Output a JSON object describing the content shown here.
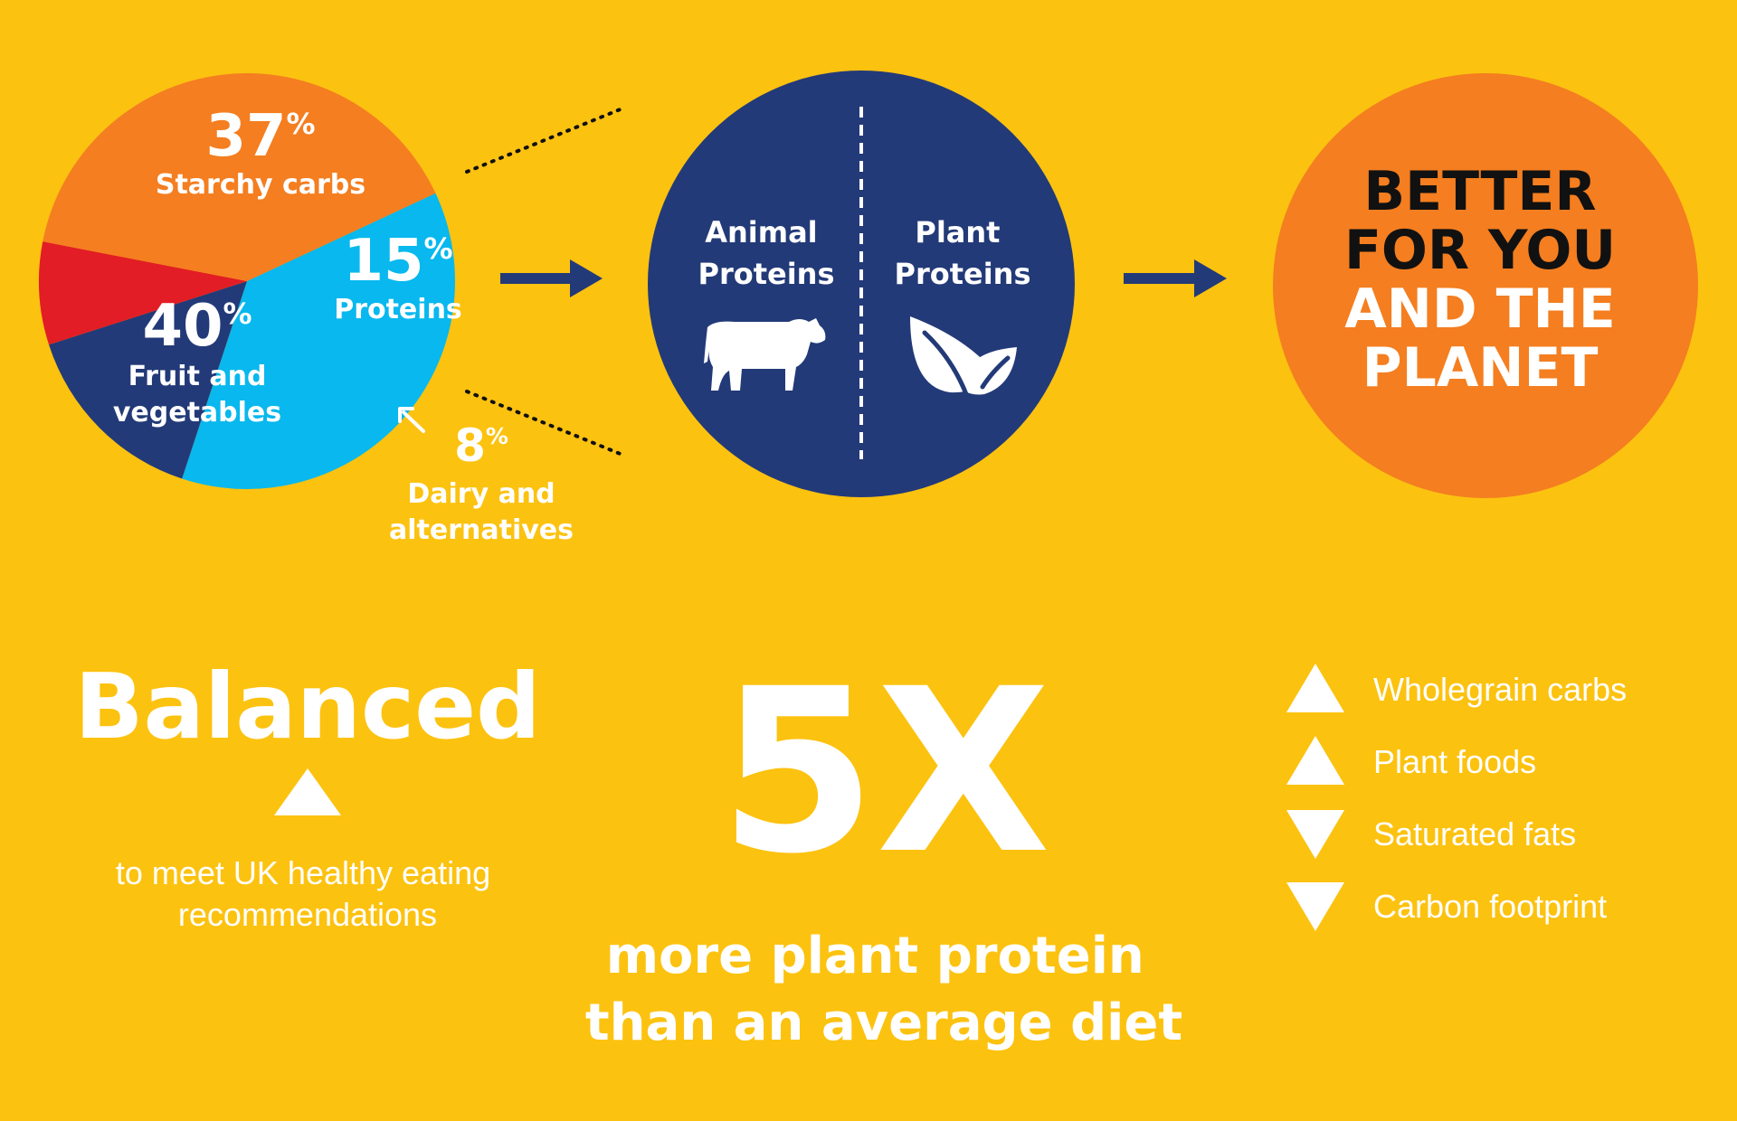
{
  "colors": {
    "background": "#FCC210",
    "navy": "#233A78",
    "orange": "#F47E20",
    "light_blue": "#08B8EE",
    "red": "#E21D25",
    "white": "#FFFFFF",
    "black": "#111111"
  },
  "chart_data": {
    "type": "pie",
    "start_angle_deg": -25,
    "slices": [
      {
        "label": "Starchy carbs",
        "value": 37,
        "value_label": "37",
        "pct_symbol": "%",
        "color": "#08B8EE"
      },
      {
        "label": "Proteins",
        "value": 15,
        "value_label": "15",
        "pct_symbol": "%",
        "color": "#233A78"
      },
      {
        "label": "Dairy and alternatives",
        "label_lines": [
          "Dairy and",
          "alternatives"
        ],
        "value": 8,
        "value_label": "8",
        "pct_symbol": "%",
        "color": "#E21D25"
      },
      {
        "label": "Fruit and vegetables",
        "label_lines": [
          "Fruit and",
          "vegetables"
        ],
        "value": 40,
        "value_label": "40",
        "pct_symbol": "%",
        "color": "#F47E20"
      }
    ]
  },
  "protein_split": {
    "animal_lines": [
      "Animal",
      "Proteins"
    ],
    "plant_lines": [
      "Plant",
      "Proteins"
    ],
    "animal_icon": "cow-icon",
    "plant_icon": "leaf-icon"
  },
  "result": {
    "lines": [
      "BETTER",
      "FOR YOU",
      "AND THE",
      "PLANET"
    ]
  },
  "balanced": {
    "title": "Balanced",
    "icon": "triangle-up-icon",
    "caption_lines": [
      "to meet UK healthy eating",
      "recommendations"
    ]
  },
  "multiplier": {
    "value": "5X",
    "caption_lines": [
      "more plant protein",
      "than an average diet"
    ]
  },
  "indicators": [
    {
      "label": "Wholegrain carbs",
      "direction": "up"
    },
    {
      "label": "Plant foods",
      "direction": "up"
    },
    {
      "label": "Saturated fats",
      "direction": "down"
    },
    {
      "label": "Carbon footprint",
      "direction": "down"
    }
  ]
}
